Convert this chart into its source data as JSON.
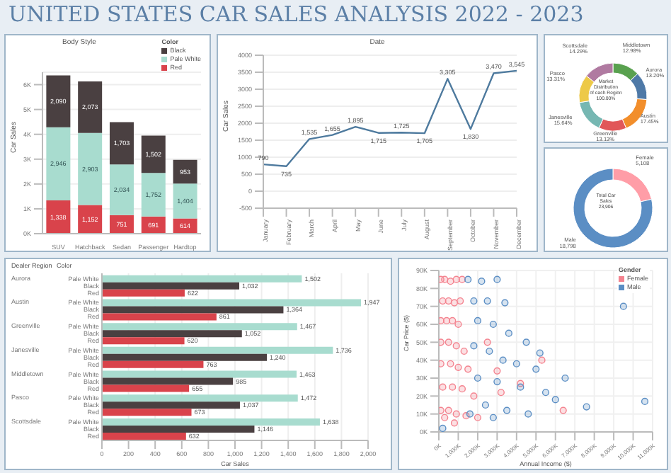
{
  "chart_data": [
    {
      "type": "other",
      "title": "UNITED STATES CAR SALES ANALYSIS 2022 - 2023"
    },
    {
      "type": "bar",
      "title": "Body Style",
      "ylabel": "Car Sales",
      "legend_title": "Color",
      "stacked": true,
      "categories": [
        "SUV",
        "Hatchback",
        "Sedan",
        "Passenger",
        "Hardtop"
      ],
      "series": [
        {
          "name": "Red",
          "color": "#d9434b",
          "values": [
            1338,
            1152,
            751,
            691,
            614
          ],
          "value_labels": [
            "1,338",
            "1,152",
            "751",
            "691",
            "614"
          ]
        },
        {
          "name": "Pale White",
          "color": "#a8dccf",
          "values": [
            2946,
            2903,
            2034,
            1752,
            1404
          ],
          "value_labels": [
            "2,946",
            "2,903",
            "2,034",
            "1,752",
            "1,404"
          ]
        },
        {
          "name": "Black",
          "color": "#4a4041",
          "values": [
            2090,
            2073,
            1703,
            1502,
            953
          ],
          "value_labels": [
            "2,090",
            "2,073",
            "1,703",
            "1,502",
            "953"
          ]
        }
      ],
      "ylim": [
        0,
        6500
      ],
      "yticks": [
        {
          "value": 0,
          "label": "0K"
        },
        {
          "value": 1000,
          "label": "1K"
        },
        {
          "value": 2000,
          "label": "2K"
        },
        {
          "value": 3000,
          "label": "3K"
        },
        {
          "value": 4000,
          "label": "4K"
        },
        {
          "value": 5000,
          "label": "5K"
        },
        {
          "value": 6000,
          "label": "6K"
        }
      ],
      "grid": "y",
      "legend": "top right"
    },
    {
      "type": "line",
      "title": "Date",
      "ylabel": "Car Sales",
      "categories": [
        "January",
        "February",
        "March",
        "April",
        "May",
        "June",
        "July",
        "August",
        "September",
        "October",
        "November",
        "December"
      ],
      "values": [
        790,
        735,
        1535,
        1655,
        1895,
        1715,
        1725,
        1705,
        3305,
        1830,
        3470,
        3545
      ],
      "value_labels": [
        "790",
        "735",
        "1,535",
        "1,655",
        "1,895",
        "1,715",
        "1,725",
        "1,705",
        "3,305",
        "1,830",
        "3,470",
        "3,545"
      ],
      "color": "#4e7a9e",
      "ylim": [
        -500,
        4000
      ],
      "yticks": [
        -500,
        0,
        500,
        1000,
        1500,
        2000,
        2500,
        3000,
        3500,
        4000
      ],
      "grid": "y"
    },
    {
      "type": "donut",
      "categories": [
        "Middletown",
        "Aurora",
        "Austin",
        "Greenville",
        "Janesville",
        "Pasco",
        "Scottsdale"
      ],
      "values": [
        12.98,
        13.2,
        17.45,
        13.13,
        15.64,
        13.31,
        14.29
      ],
      "colors": [
        "#59a14f",
        "#4e79a7",
        "#f28e2b",
        "#e15759",
        "#76b7b2",
        "#edc948",
        "#b07aa1"
      ],
      "value_labels": [
        "12.98%",
        "13.20%",
        "17.45%",
        "13.13%",
        "15.64%",
        "13.31%",
        "14.29%"
      ],
      "annotations": [
        "Market Distribution of each Region",
        "100.00%"
      ]
    },
    {
      "type": "donut",
      "categories": [
        "Female",
        "Male"
      ],
      "values": [
        5108,
        18798
      ],
      "colors": [
        "#ff9da7",
        "#5b8ec4"
      ],
      "value_labels": [
        "5,108",
        "18,798"
      ],
      "annotations": [
        "Total Car Sales",
        "23,906"
      ]
    },
    {
      "type": "bar",
      "orientation": "horizontal",
      "ylabel": "Dealer Region",
      "legend_title": "Color",
      "xlabel": "Car Sales",
      "categories": [
        "Aurora",
        "Austin",
        "Greenville",
        "Janesville",
        "Middletown",
        "Pasco",
        "Scottsdale"
      ],
      "series": [
        {
          "name": "Pale White",
          "color": "#a8dccf",
          "values": [
            1502,
            1947,
            1467,
            1736,
            1463,
            1472,
            1638
          ],
          "value_labels": [
            "1,502",
            "1,947",
            "1,467",
            "1,736",
            "1,463",
            "1,472",
            "1,638"
          ]
        },
        {
          "name": "Black",
          "color": "#4a4041",
          "values": [
            1032,
            1364,
            1052,
            1240,
            985,
            1037,
            1146
          ],
          "value_labels": [
            "1,032",
            "1,364",
            "1,052",
            "1,240",
            "985",
            "1,037",
            "1,146"
          ]
        },
        {
          "name": "Red",
          "color": "#d9434b",
          "values": [
            622,
            861,
            620,
            763,
            655,
            673,
            632
          ],
          "value_labels": [
            "622",
            "861",
            "620",
            "763",
            "655",
            "673",
            "632"
          ]
        }
      ],
      "xlim": [
        0,
        2000
      ],
      "xticks": [
        0,
        200,
        400,
        600,
        800,
        {
          "value": 1000,
          "label": "1,000"
        },
        {
          "value": 1200,
          "label": "1,200"
        },
        {
          "value": 1400,
          "label": "1,400"
        },
        {
          "value": 1600,
          "label": "1,600"
        },
        {
          "value": 1800,
          "label": "1,800"
        },
        {
          "value": 2000,
          "label": "2,000"
        }
      ],
      "grid": "x"
    },
    {
      "type": "scatter",
      "xlabel": "Annual Income ($)",
      "ylabel": "Car Price ($)",
      "legend_title": "Gender",
      "marker": "circle",
      "legend": "top right",
      "grid": true,
      "xlim": [
        0,
        11000000
      ],
      "xticks": [
        {
          "value": 0,
          "label": "0K"
        },
        {
          "value": 1000000,
          "label": "1,000K"
        },
        {
          "value": 2000000,
          "label": "2,000K"
        },
        {
          "value": 3000000,
          "label": "3,000K"
        },
        {
          "value": 4000000,
          "label": "4,000K"
        },
        {
          "value": 5000000,
          "label": "5,000K"
        },
        {
          "value": 6000000,
          "label": "6,000K"
        },
        {
          "value": 7000000,
          "label": "7,000K"
        },
        {
          "value": 8000000,
          "label": "8,000K"
        },
        {
          "value": 9000000,
          "label": "9,000K"
        },
        {
          "value": 10000000,
          "label": "10,000K"
        },
        {
          "value": 11000000,
          "label": "11,000K"
        }
      ],
      "ylim": [
        0,
        90000
      ],
      "yticks": [
        {
          "value": 0,
          "label": "0K"
        },
        {
          "value": 10000,
          "label": "10K"
        },
        {
          "value": 20000,
          "label": "20K"
        },
        {
          "value": 30000,
          "label": "30K"
        },
        {
          "value": 40000,
          "label": "40K"
        },
        {
          "value": 50000,
          "label": "50K"
        },
        {
          "value": 60000,
          "label": "60K"
        },
        {
          "value": 70000,
          "label": "70K"
        },
        {
          "value": 80000,
          "label": "80K"
        },
        {
          "value": 90000,
          "label": "90K"
        }
      ],
      "series": [
        {
          "name": "Female",
          "color": "#f4838f",
          "x": [
            100000,
            300000,
            600000,
            900000,
            1200000,
            200000,
            500000,
            800000,
            1100000,
            100000,
            400000,
            700000,
            1000000,
            100000,
            500000,
            900000,
            1300000,
            100000,
            600000,
            1000000,
            1500000,
            200000,
            700000,
            1200000,
            1800000,
            100000,
            500000,
            900000,
            1400000,
            300000,
            2000000,
            800000,
            3200000,
            4200000,
            5300000,
            6400000,
            2500000,
            3000000
          ],
          "values": [
            85000,
            85000,
            84000,
            85000,
            85000,
            73000,
            73000,
            72000,
            73000,
            62000,
            62000,
            62000,
            60000,
            50000,
            50000,
            48000,
            45000,
            38000,
            38000,
            36000,
            35000,
            25000,
            25000,
            24000,
            20000,
            12000,
            12000,
            10000,
            9000,
            8000,
            8000,
            5000,
            22000,
            27000,
            40000,
            12000,
            50000,
            34000
          ]
        },
        {
          "name": "Male",
          "color": "#5b8ec4",
          "x": [
            1500000,
            2200000,
            3000000,
            1800000,
            2500000,
            3400000,
            2000000,
            2800000,
            3600000,
            4500000,
            1800000,
            2600000,
            3300000,
            4000000,
            5000000,
            2000000,
            3000000,
            4200000,
            5500000,
            6000000,
            2400000,
            3500000,
            4600000,
            7600000,
            1600000,
            2800000,
            200000,
            10600000,
            6500000,
            5200000,
            9500000
          ],
          "values": [
            85000,
            84000,
            85000,
            73000,
            73000,
            72000,
            62000,
            60000,
            55000,
            50000,
            48000,
            45000,
            40000,
            38000,
            35000,
            30000,
            28000,
            25000,
            22000,
            18000,
            15000,
            12000,
            10000,
            14000,
            10000,
            8000,
            2000,
            17000,
            30000,
            44000,
            70000
          ]
        }
      ]
    }
  ]
}
